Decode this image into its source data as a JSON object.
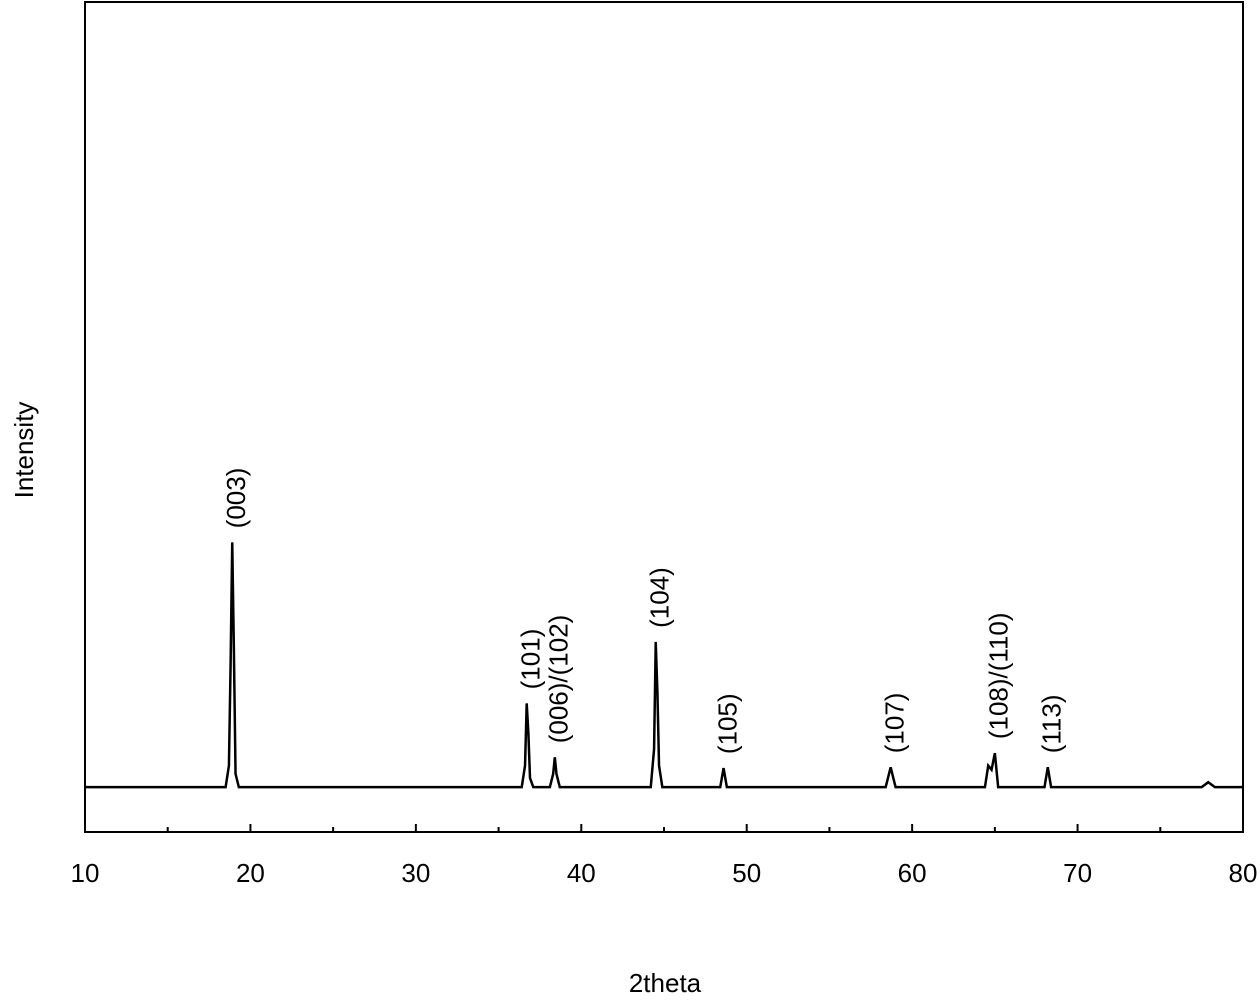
{
  "chart_data": {
    "type": "line",
    "x_label": "2theta",
    "y_label": "Intensity",
    "x": [
      10,
      18.5,
      18.7,
      18.8,
      18.9,
      19.0,
      19.1,
      19.3,
      36.4,
      36.6,
      36.7,
      36.8,
      36.9,
      37.1,
      38.1,
      38.3,
      38.4,
      38.5,
      38.7,
      44.2,
      44.4,
      44.5,
      44.6,
      44.7,
      44.9,
      48.4,
      48.6,
      48.8,
      58.4,
      58.7,
      59.0,
      64.4,
      64.6,
      64.8,
      65.0,
      65.2,
      68.0,
      68.2,
      68.4,
      77.5,
      77.9,
      78.3,
      80
    ],
    "series": [
      {
        "color": "#000000",
        "values": [
          5.4,
          5.4,
          8,
          20,
          34.9,
          22,
          7,
          5.4,
          5.4,
          8,
          15.5,
          12,
          6.5,
          5.4,
          5.4,
          7,
          9.0,
          7,
          5.4,
          5.4,
          10,
          22.9,
          17,
          8,
          5.4,
          5.4,
          7.7,
          5.4,
          5.4,
          7.8,
          5.4,
          5.4,
          8,
          7.5,
          9.5,
          5.4,
          5.4,
          7.8,
          5.4,
          5.4,
          6,
          5.4,
          5.4
        ]
      }
    ],
    "annotations": [
      {
        "text": "(003)",
        "x": 18.9
      },
      {
        "text": "(101)",
        "x": 36.7
      },
      {
        "text": "(006)/(102)",
        "x": 38.4
      },
      {
        "text": "(104)",
        "x": 44.5
      },
      {
        "text": "(105)",
        "x": 48.6
      },
      {
        "text": "(107)",
        "x": 58.7
      },
      {
        "text": "(108)/(110)",
        "x": 65.0
      },
      {
        "text": "(113)",
        "x": 68.2
      }
    ],
    "xlim": [
      10,
      80
    ],
    "xticks": [
      10,
      20,
      30,
      40,
      50,
      60,
      70,
      80
    ],
    "xminorticks": [
      15,
      25,
      35,
      45,
      55,
      65,
      75
    ],
    "ylim": [
      0,
      100
    ],
    "grid": false
  }
}
